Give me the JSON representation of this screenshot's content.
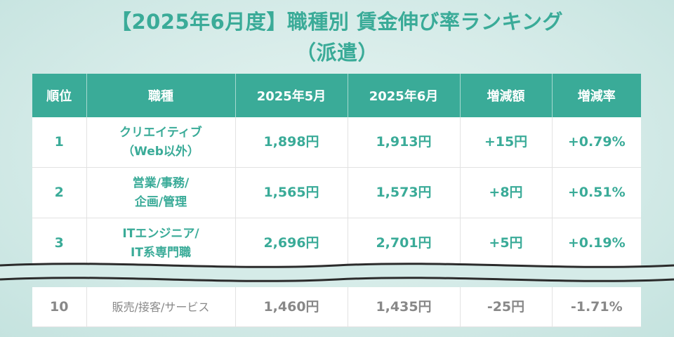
{
  "title_line1": "【2025年6月度】職種別 賃金伸び率ランキング",
  "title_line2": "（派遣）",
  "chart_data": {
    "type": "table",
    "columns": [
      "順位",
      "職種",
      "2025年5月",
      "2025年6月",
      "増減額",
      "増減率"
    ],
    "rows": [
      {
        "rank": "1",
        "job_line1": "クリエイティブ",
        "job_line2": "（Web以外）",
        "may": "1,898円",
        "jun": "1,913円",
        "diff": "+15円",
        "rate": "+0.79%"
      },
      {
        "rank": "2",
        "job_line1": "営業/事務/",
        "job_line2": "企画/管理",
        "may": "1,565円",
        "jun": "1,573円",
        "diff": "+8円",
        "rate": "+0.51%"
      },
      {
        "rank": "3",
        "job_line1": "ITエンジニア/",
        "job_line2": "IT系専門職",
        "may": "2,696円",
        "jun": "2,701円",
        "diff": "+5円",
        "rate": "+0.19%"
      },
      {
        "rank": "10",
        "job_line1": "販売/接客/サービス",
        "job_line2": "",
        "may": "1,460円",
        "jun": "1,435円",
        "diff": "-25円",
        "rate": "-1.71%"
      }
    ]
  },
  "colors": {
    "accent": "#3aab98",
    "header_text": "#ffffff",
    "cell_text_top": "#3aab98",
    "cell_text_bottom": "#888888",
    "background": "#d5ebe8"
  }
}
